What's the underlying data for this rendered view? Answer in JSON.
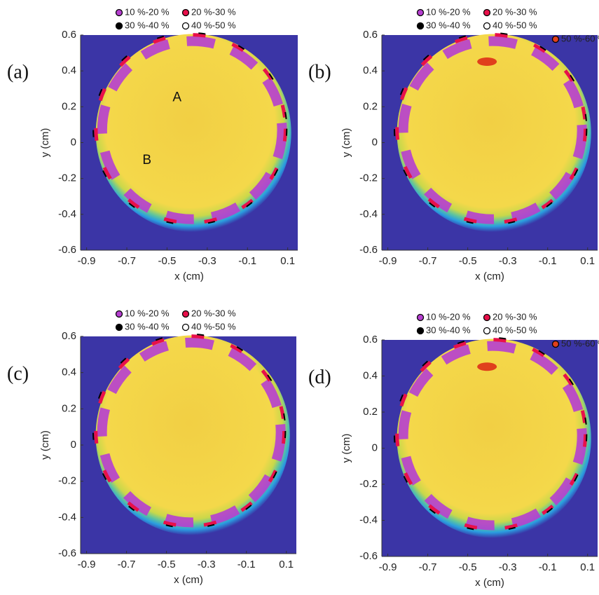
{
  "chart_data": [
    {
      "type": "heatmap",
      "panel_label": "(a)",
      "xlabel": "x (cm)",
      "ylabel": "y (cm)",
      "xlim": [
        -0.93,
        0.15
      ],
      "ylim": [
        -0.6,
        0.6
      ],
      "xticks": [
        -0.9,
        -0.7,
        -0.5,
        -0.3,
        -0.1,
        0.1
      ],
      "yticks": [
        -0.6,
        -0.4,
        -0.2,
        0,
        0.2,
        0.4,
        0.6
      ],
      "legend": [
        {
          "name": "10 %-20 %",
          "color": "#b63fd0"
        },
        {
          "name": "20 %-30 %",
          "color": "#e8104a"
        },
        {
          "name": "30 %-40 %",
          "color": "#000000"
        },
        {
          "name": "40 %-50 %",
          "color": "#ffffff"
        }
      ],
      "annotations": [
        {
          "text": "A",
          "x": -0.45,
          "y": 0.25
        },
        {
          "text": "B",
          "x": -0.6,
          "y": -0.1
        }
      ]
    },
    {
      "type": "heatmap",
      "panel_label": "(b)",
      "xlabel": "x (cm)",
      "ylabel": "y (cm)",
      "xlim": [
        -0.93,
        0.15
      ],
      "ylim": [
        -0.6,
        0.6
      ],
      "xticks": [
        -0.9,
        -0.7,
        -0.5,
        -0.3,
        -0.1,
        0.1
      ],
      "yticks": [
        -0.6,
        -0.4,
        -0.2,
        0,
        0.2,
        0.4,
        0.6
      ],
      "legend": [
        {
          "name": "10 %-20 %",
          "color": "#b63fd0"
        },
        {
          "name": "20 %-30 %",
          "color": "#e8104a"
        },
        {
          "name": "30 %-40 %",
          "color": "#000000"
        },
        {
          "name": "40 %-50 %",
          "color": "#ffffff"
        },
        {
          "name": "50 %-60 %",
          "color": "#e0401c"
        }
      ]
    },
    {
      "type": "heatmap",
      "panel_label": "(c)",
      "xlabel": "x (cm)",
      "ylabel": "y (cm)",
      "xlim": [
        -0.93,
        0.15
      ],
      "ylim": [
        -0.6,
        0.6
      ],
      "xticks": [
        -0.9,
        -0.7,
        -0.5,
        -0.3,
        -0.1,
        0.1
      ],
      "yticks": [
        -0.6,
        -0.4,
        -0.2,
        0,
        0.2,
        0.4,
        0.6
      ],
      "legend": [
        {
          "name": "10 %-20 %",
          "color": "#b63fd0"
        },
        {
          "name": "20 %-30 %",
          "color": "#e8104a"
        },
        {
          "name": "30 %-40 %",
          "color": "#000000"
        },
        {
          "name": "40 %-50 %",
          "color": "#ffffff"
        }
      ]
    },
    {
      "type": "heatmap",
      "panel_label": "(d)",
      "xlabel": "x (cm)",
      "ylabel": "y (cm)",
      "xlim": [
        -0.93,
        0.15
      ],
      "ylim": [
        -0.6,
        0.6
      ],
      "xticks": [
        -0.9,
        -0.7,
        -0.5,
        -0.3,
        -0.1,
        0.1
      ],
      "yticks": [
        -0.6,
        -0.4,
        -0.2,
        0,
        0.2,
        0.4,
        0.6
      ],
      "legend": [
        {
          "name": "10 %-20 %",
          "color": "#b63fd0"
        },
        {
          "name": "20 %-30 %",
          "color": "#e8104a"
        },
        {
          "name": "30 %-40 %",
          "color": "#000000"
        },
        {
          "name": "40 %-50 %",
          "color": "#ffffff"
        },
        {
          "name": "50 %-60 %",
          "color": "#e0401c"
        }
      ]
    }
  ]
}
